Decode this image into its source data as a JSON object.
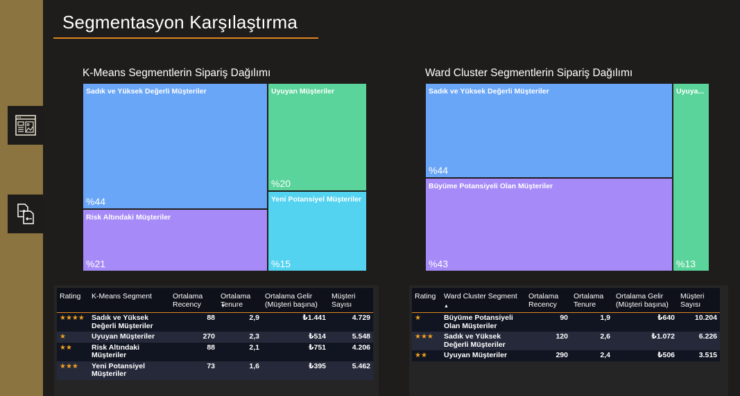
{
  "page": {
    "title": "Segmentasyon Karşılaştırma",
    "accent_color": "#e0851e",
    "sidebar_color": "#8c7440"
  },
  "sidebar": {
    "items": [
      {
        "icon": "dashboard-layout-icon"
      },
      {
        "icon": "compare-files-icon"
      }
    ]
  },
  "chart_data": [
    {
      "type": "treemap",
      "title": "K-Means Segmentlerin Sipariş Dağılımı",
      "segments": [
        {
          "name": "Sadık ve Yüksek Değerli Müşteriler",
          "value": 44,
          "label": "%44",
          "color": "#6aa6f7"
        },
        {
          "name": "Risk Altındaki Müşteriler",
          "value": 21,
          "label": "%21",
          "color": "#a68af8"
        },
        {
          "name": "Uyuyan Müşteriler",
          "value": 20,
          "label": "%20",
          "color": "#5ad49a"
        },
        {
          "name": "Yeni Potansiyel Müşteriler",
          "value": 15,
          "label": "%15",
          "color": "#53d3ef"
        }
      ]
    },
    {
      "type": "treemap",
      "title": "Ward Cluster Segmentlerin Sipariş Dağılımı",
      "segments": [
        {
          "name": "Sadık ve Yüksek Değerli Müşteriler",
          "value": 44,
          "label": "%44",
          "color": "#6aa6f7"
        },
        {
          "name": "Büyüme Potansiyeli Olan Müşteriler",
          "value": 43,
          "label": "%43",
          "color": "#a68af8"
        },
        {
          "name": "Uyuya...",
          "value": 13,
          "label": "%13",
          "color": "#5ad49a"
        }
      ]
    }
  ],
  "kmeans_table": {
    "headers": [
      "Rating",
      "K-Means Segment",
      "Ortalama Recency",
      "Ortalama Tenure",
      "Ortalama Gelir (Müşteri başına)",
      "Müşteri Sayısı"
    ],
    "sort_indicator": "▼",
    "rows": [
      {
        "rating": "★★★★",
        "segment": "Sadık ve Yüksek Değerli Müşteriler",
        "recency": "88",
        "tenure": "2,9",
        "gelir": "₺1.441",
        "sayi": "4.729"
      },
      {
        "rating": "★",
        "segment": "Uyuyan Müşteriler",
        "recency": "270",
        "tenure": "2,3",
        "gelir": "₺514",
        "sayi": "5.548"
      },
      {
        "rating": "★★",
        "segment": "Risk Altındaki Müşteriler",
        "recency": "88",
        "tenure": "2,1",
        "gelir": "₺751",
        "sayi": "4.206"
      },
      {
        "rating": "★★★",
        "segment": "Yeni Potansiyel Müşteriler",
        "recency": "73",
        "tenure": "1,6",
        "gelir": "₺395",
        "sayi": "5.462"
      }
    ]
  },
  "ward_table": {
    "headers": [
      "Rating",
      "Ward Cluster Segment",
      "Ortalama Recency",
      "Ortalama Tenure",
      "Ortalama Gelir (Müşteri başına)",
      "Müşteri Sayısı"
    ],
    "sort_indicator": "▲",
    "rows": [
      {
        "rating": "★",
        "segment": "Büyüme Potansiyeli Olan Müşteriler",
        "recency": "90",
        "tenure": "1,9",
        "gelir": "₺640",
        "sayi": "10.204"
      },
      {
        "rating": "★★★",
        "segment": "Sadık ve Yüksek Değerli Müşteriler",
        "recency": "120",
        "tenure": "2,6",
        "gelir": "₺1.072",
        "sayi": "6.226"
      },
      {
        "rating": "★★",
        "segment": "Uyuyan Müşteriler",
        "recency": "290",
        "tenure": "2,4",
        "gelir": "₺506",
        "sayi": "3.515"
      }
    ]
  }
}
